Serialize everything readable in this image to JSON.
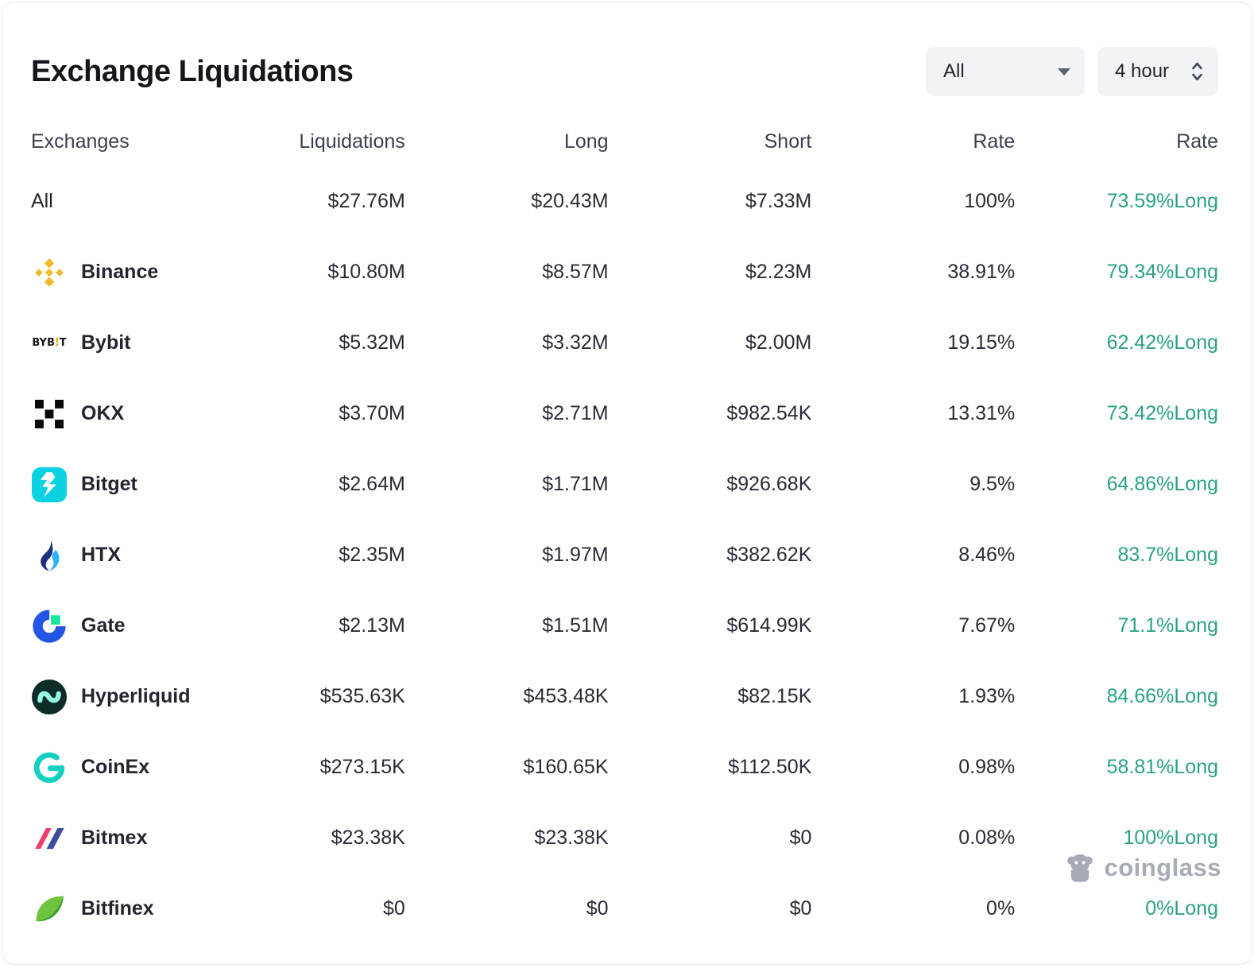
{
  "header": {
    "title": "Exchange Liquidations",
    "filters": {
      "scope": {
        "value": "All",
        "icon": "chevron-down-icon"
      },
      "timeframe": {
        "value": "4 hour",
        "icon": "up-down-stepper-icon"
      }
    }
  },
  "table": {
    "columns": [
      "Exchanges",
      "Liquidations",
      "Long",
      "Short",
      "Rate",
      "Rate"
    ],
    "rows": [
      {
        "name": "All",
        "icon": null,
        "liquidations": "$27.76M",
        "long": "$20.43M",
        "short": "$7.33M",
        "rate": "100%",
        "long_rate": "73.59%Long"
      },
      {
        "name": "Binance",
        "icon": "binance-icon",
        "liquidations": "$10.80M",
        "long": "$8.57M",
        "short": "$2.23M",
        "rate": "38.91%",
        "long_rate": "79.34%Long"
      },
      {
        "name": "Bybit",
        "icon": "bybit-icon",
        "liquidations": "$5.32M",
        "long": "$3.32M",
        "short": "$2.00M",
        "rate": "19.15%",
        "long_rate": "62.42%Long"
      },
      {
        "name": "OKX",
        "icon": "okx-icon",
        "liquidations": "$3.70M",
        "long": "$2.71M",
        "short": "$982.54K",
        "rate": "13.31%",
        "long_rate": "73.42%Long"
      },
      {
        "name": "Bitget",
        "icon": "bitget-icon",
        "liquidations": "$2.64M",
        "long": "$1.71M",
        "short": "$926.68K",
        "rate": "9.5%",
        "long_rate": "64.86%Long"
      },
      {
        "name": "HTX",
        "icon": "htx-icon",
        "liquidations": "$2.35M",
        "long": "$1.97M",
        "short": "$382.62K",
        "rate": "8.46%",
        "long_rate": "83.7%Long"
      },
      {
        "name": "Gate",
        "icon": "gate-icon",
        "liquidations": "$2.13M",
        "long": "$1.51M",
        "short": "$614.99K",
        "rate": "7.67%",
        "long_rate": "71.1%Long"
      },
      {
        "name": "Hyperliquid",
        "icon": "hyperliquid-icon",
        "liquidations": "$535.63K",
        "long": "$453.48K",
        "short": "$82.15K",
        "rate": "1.93%",
        "long_rate": "84.66%Long"
      },
      {
        "name": "CoinEx",
        "icon": "coinex-icon",
        "liquidations": "$273.15K",
        "long": "$160.65K",
        "short": "$112.50K",
        "rate": "0.98%",
        "long_rate": "58.81%Long"
      },
      {
        "name": "Bitmex",
        "icon": "bitmex-icon",
        "liquidations": "$23.38K",
        "long": "$23.38K",
        "short": "$0",
        "rate": "0.08%",
        "long_rate": "100%Long"
      },
      {
        "name": "Bitfinex",
        "icon": "bitfinex-icon",
        "liquidations": "$0",
        "long": "$0",
        "short": "$0",
        "rate": "0%",
        "long_rate": "0%Long"
      }
    ]
  },
  "colors": {
    "long_green": "#2aa184"
  },
  "watermark": {
    "brand": "coinglass",
    "icon": "coinglass-gorilla-icon"
  }
}
